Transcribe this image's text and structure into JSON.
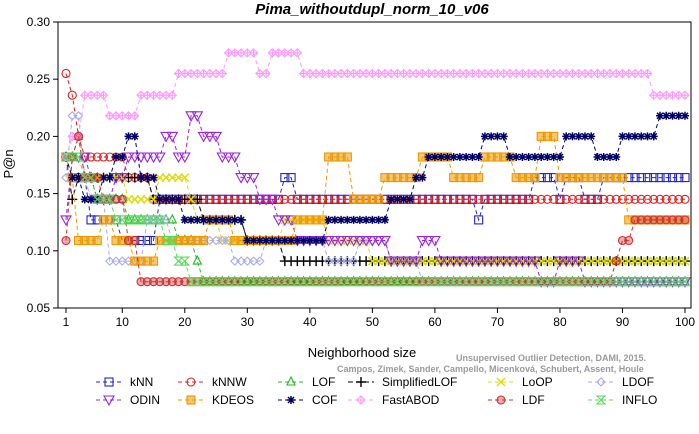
{
  "chart_data": {
    "type": "line",
    "title": "Pima_withoutdupl_norm_10_v06",
    "xlabel": "Neighborhood size",
    "ylabel": "P@n",
    "xlim": [
      1,
      100
    ],
    "ylim": [
      0.05,
      0.3
    ],
    "xticks": [
      1,
      10,
      20,
      30,
      40,
      50,
      60,
      70,
      80,
      90,
      100
    ],
    "yticks": [
      0.05,
      0.1,
      0.15,
      0.2,
      0.25,
      0.3
    ],
    "ytick_labels": [
      "0.05",
      "0.10",
      "0.15",
      "0.20",
      "0.25",
      "0.30"
    ],
    "credit": "Campos, Zimek, Sander, Campello, Micenková, Schubert, Assent, Houle",
    "credit_line1": "Unsupervised Outlier Detection, DAMI, 2015.",
    "legend_position": "bottom",
    "series": [
      {
        "name": "kNN",
        "color": "#2222cc",
        "marker": "square",
        "dash": "4,3",
        "keypoints": [
          [
            1,
            0.182
          ],
          [
            2,
            0.164
          ],
          [
            4,
            0.164
          ],
          [
            5,
            0.127
          ],
          [
            15,
            0.109
          ],
          [
            16,
            0.145
          ],
          [
            35,
            0.145
          ],
          [
            36,
            0.164
          ],
          [
            37,
            0.164
          ],
          [
            38,
            0.145
          ],
          [
            66,
            0.145
          ],
          [
            67,
            0.127
          ],
          [
            68,
            0.145
          ],
          [
            75,
            0.145
          ],
          [
            76,
            0.164
          ],
          [
            79,
            0.164
          ],
          [
            80,
            0.145
          ],
          [
            81,
            0.164
          ],
          [
            83,
            0.164
          ],
          [
            84,
            0.145
          ],
          [
            86,
            0.145
          ],
          [
            87,
            0.164
          ],
          [
            100,
            0.164
          ]
        ]
      },
      {
        "name": "kNNW",
        "color": "#dd2222",
        "marker": "circle",
        "dash": "4,3",
        "keypoints": [
          [
            1,
            0.255
          ],
          [
            2,
            0.236
          ],
          [
            3,
            0.2
          ],
          [
            4,
            0.182
          ],
          [
            10,
            0.182
          ],
          [
            11,
            0.164
          ],
          [
            14,
            0.164
          ],
          [
            15,
            0.145
          ],
          [
            70,
            0.145
          ],
          [
            71,
            0.145
          ],
          [
            100,
            0.145
          ]
        ]
      },
      {
        "name": "LOF",
        "color": "#22bb22",
        "marker": "triangle-up",
        "dash": "4,3",
        "keypoints": [
          [
            1,
            0.182
          ],
          [
            2,
            0.182
          ],
          [
            3,
            0.2
          ],
          [
            4,
            0.164
          ],
          [
            7,
            0.145
          ],
          [
            10,
            0.145
          ],
          [
            11,
            0.127
          ],
          [
            18,
            0.127
          ],
          [
            19,
            0.109
          ],
          [
            21,
            0.109
          ],
          [
            22,
            0.091
          ],
          [
            23,
            0.073
          ],
          [
            100,
            0.073
          ]
        ]
      },
      {
        "name": "SimplifiedLOF",
        "color": "#000000",
        "marker": "plus",
        "dash": "5,3",
        "keypoints": [
          [
            1,
            0.182
          ],
          [
            2,
            0.145
          ],
          [
            3,
            0.164
          ],
          [
            14,
            0.164
          ],
          [
            15,
            0.145
          ],
          [
            22,
            0.145
          ],
          [
            23,
            0.127
          ],
          [
            29,
            0.127
          ],
          [
            30,
            0.109
          ],
          [
            35,
            0.109
          ],
          [
            36,
            0.091
          ],
          [
            85,
            0.091
          ],
          [
            86,
            0.091
          ],
          [
            100,
            0.091
          ]
        ]
      },
      {
        "name": "LoOP",
        "color": "#dddd00",
        "marker": "x",
        "dash": "4,3",
        "keypoints": [
          [
            1,
            0.182
          ],
          [
            2,
            0.164
          ],
          [
            10,
            0.164
          ],
          [
            12,
            0.145
          ],
          [
            20,
            0.164
          ],
          [
            21,
            0.145
          ],
          [
            22,
            0.127
          ],
          [
            25,
            0.127
          ],
          [
            26,
            0.109
          ],
          [
            35,
            0.109
          ],
          [
            36,
            0.127
          ],
          [
            40,
            0.127
          ],
          [
            45,
            0.109
          ],
          [
            55,
            0.091
          ],
          [
            65,
            0.091
          ],
          [
            100,
            0.091
          ]
        ]
      },
      {
        "name": "LDOF",
        "color": "#aaaaee",
        "marker": "diamond",
        "dash": "4,3",
        "keypoints": [
          [
            1,
            0.164
          ],
          [
            3,
            0.218
          ],
          [
            4,
            0.164
          ],
          [
            6,
            0.145
          ],
          [
            10,
            0.091
          ],
          [
            12,
            0.091
          ],
          [
            15,
            0.127
          ],
          [
            20,
            0.109
          ],
          [
            25,
            0.109
          ],
          [
            30,
            0.091
          ],
          [
            35,
            0.109
          ],
          [
            40,
            0.109
          ],
          [
            45,
            0.091
          ],
          [
            50,
            0.109
          ],
          [
            55,
            0.091
          ],
          [
            60,
            0.073
          ],
          [
            80,
            0.073
          ],
          [
            100,
            0.073
          ]
        ]
      },
      {
        "name": "ODIN",
        "color": "#9922dd",
        "marker": "triangle-down",
        "dash": "4,3",
        "keypoints": [
          [
            1,
            0.127
          ],
          [
            2,
            0.182
          ],
          [
            4,
            0.182
          ],
          [
            5,
            0.164
          ],
          [
            7,
            0.145
          ],
          [
            10,
            0.164
          ],
          [
            12,
            0.182
          ],
          [
            15,
            0.182
          ],
          [
            18,
            0.2
          ],
          [
            20,
            0.182
          ],
          [
            22,
            0.218
          ],
          [
            24,
            0.2
          ],
          [
            27,
            0.182
          ],
          [
            30,
            0.164
          ],
          [
            33,
            0.145
          ],
          [
            36,
            0.127
          ],
          [
            40,
            0.109
          ],
          [
            45,
            0.109
          ],
          [
            50,
            0.109
          ],
          [
            55,
            0.091
          ],
          [
            60,
            0.109
          ],
          [
            62,
            0.091
          ],
          [
            70,
            0.091
          ],
          [
            75,
            0.091
          ],
          [
            78,
            0.073
          ],
          [
            82,
            0.091
          ],
          [
            86,
            0.073
          ],
          [
            100,
            0.073
          ]
        ]
      },
      {
        "name": "KDEOS",
        "color": "#ee9900",
        "marker": "square-filled",
        "dash": "4,3",
        "keypoints": [
          [
            1,
            0.182
          ],
          [
            2,
            0.164
          ],
          [
            4,
            0.109
          ],
          [
            6,
            0.109
          ],
          [
            8,
            0.127
          ],
          [
            10,
            0.109
          ],
          [
            14,
            0.091
          ],
          [
            18,
            0.109
          ],
          [
            22,
            0.109
          ],
          [
            25,
            0.127
          ],
          [
            30,
            0.109
          ],
          [
            35,
            0.109
          ],
          [
            40,
            0.127
          ],
          [
            45,
            0.182
          ],
          [
            48,
            0.145
          ],
          [
            55,
            0.164
          ],
          [
            60,
            0.182
          ],
          [
            65,
            0.164
          ],
          [
            70,
            0.182
          ],
          [
            75,
            0.164
          ],
          [
            78,
            0.2
          ],
          [
            82,
            0.164
          ],
          [
            90,
            0.164
          ],
          [
            92,
            0.127
          ],
          [
            100,
            0.127
          ]
        ]
      },
      {
        "name": "COF",
        "color": "#000066",
        "marker": "star",
        "dash": "4,3",
        "keypoints": [
          [
            1,
            0.182
          ],
          [
            2,
            0.164
          ],
          [
            5,
            0.145
          ],
          [
            8,
            0.164
          ],
          [
            10,
            0.182
          ],
          [
            12,
            0.2
          ],
          [
            14,
            0.164
          ],
          [
            18,
            0.145
          ],
          [
            22,
            0.127
          ],
          [
            28,
            0.127
          ],
          [
            32,
            0.109
          ],
          [
            40,
            0.109
          ],
          [
            45,
            0.127
          ],
          [
            50,
            0.127
          ],
          [
            55,
            0.145
          ],
          [
            58,
            0.164
          ],
          [
            60,
            0.182
          ],
          [
            66,
            0.182
          ],
          [
            70,
            0.2
          ],
          [
            73,
            0.182
          ],
          [
            78,
            0.182
          ],
          [
            83,
            0.2
          ],
          [
            88,
            0.182
          ],
          [
            91,
            0.2
          ],
          [
            95,
            0.2
          ],
          [
            97,
            0.218
          ],
          [
            100,
            0.218
          ]
        ]
      },
      {
        "name": "FastABOD",
        "color": "#ff99ff",
        "marker": "diamond-plus",
        "dash": "4,3",
        "keypoints": [
          [
            1,
            0.182
          ],
          [
            3,
            0.2
          ],
          [
            5,
            0.236
          ],
          [
            7,
            0.236
          ],
          [
            9,
            0.218
          ],
          [
            11,
            0.218
          ],
          [
            14,
            0.236
          ],
          [
            17,
            0.236
          ],
          [
            20,
            0.255
          ],
          [
            26,
            0.255
          ],
          [
            28,
            0.273
          ],
          [
            31,
            0.273
          ],
          [
            33,
            0.255
          ],
          [
            35,
            0.273
          ],
          [
            38,
            0.273
          ],
          [
            40,
            0.255
          ],
          [
            42,
            0.255
          ],
          [
            94,
            0.255
          ],
          [
            95,
            0.236
          ],
          [
            100,
            0.236
          ]
        ]
      },
      {
        "name": "LDF",
        "color": "#cc3333",
        "marker": "circle-dot",
        "dash": "4,3",
        "keypoints": [
          [
            1,
            0.109
          ],
          [
            2,
            0.182
          ],
          [
            3,
            0.2
          ],
          [
            5,
            0.164
          ],
          [
            8,
            0.145
          ],
          [
            10,
            0.145
          ],
          [
            12,
            0.109
          ],
          [
            14,
            0.073
          ],
          [
            20,
            0.073
          ],
          [
            50,
            0.073
          ],
          [
            88,
            0.073
          ],
          [
            89,
            0.091
          ],
          [
            91,
            0.109
          ],
          [
            93,
            0.127
          ],
          [
            100,
            0.127
          ]
        ]
      },
      {
        "name": "INFLO",
        "color": "#55dd55",
        "marker": "hourglass",
        "dash": "4,3",
        "keypoints": [
          [
            1,
            0.182
          ],
          [
            2,
            0.182
          ],
          [
            3,
            0.182
          ],
          [
            4,
            0.164
          ],
          [
            7,
            0.145
          ],
          [
            10,
            0.127
          ],
          [
            12,
            0.127
          ],
          [
            15,
            0.127
          ],
          [
            18,
            0.109
          ],
          [
            20,
            0.091
          ],
          [
            22,
            0.073
          ],
          [
            100,
            0.073
          ]
        ]
      }
    ]
  }
}
